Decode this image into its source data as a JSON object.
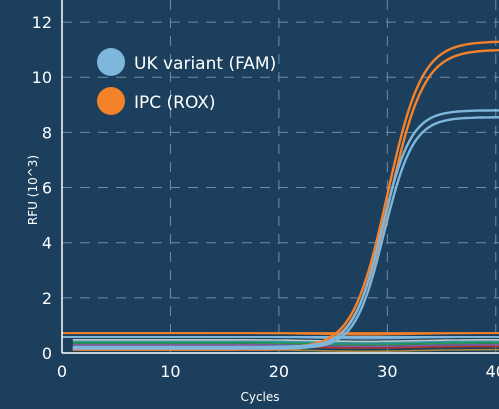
{
  "chart_data": {
    "type": "line",
    "title": "",
    "xlabel": "Cycles",
    "ylabel": "RFU (10^3)",
    "xlim": [
      0,
      45
    ],
    "ylim": [
      0,
      12.8
    ],
    "x_ticks": [
      0,
      10,
      20,
      30,
      40
    ],
    "y_ticks": [
      0,
      2,
      4,
      6,
      8,
      10,
      12
    ],
    "grid": true,
    "legend_position": "top-left",
    "legend": [
      {
        "label": "UK variant (FAM)",
        "color": "#7fb6dc"
      },
      {
        "label": "IPC (ROX)",
        "color": "#f5822a"
      }
    ],
    "series": [
      {
        "name": "IPC (ROX)",
        "color": "#f5822a",
        "kind": "curve",
        "baseline": 0.18,
        "plateau": 11.3,
        "midpoint": 30.0,
        "slope": 0.63
      },
      {
        "name": "IPC (ROX)",
        "color": "#f5822a",
        "kind": "curve",
        "baseline": 0.12,
        "plateau": 11.0,
        "midpoint": 30.2,
        "slope": 0.63
      },
      {
        "name": "UK variant (FAM)",
        "color": "#7fb6dc",
        "kind": "curve",
        "baseline": 0.22,
        "plateau": 8.8,
        "midpoint": 29.5,
        "slope": 0.75
      },
      {
        "name": "UK variant (FAM)",
        "color": "#7fb6dc",
        "kind": "curve",
        "baseline": 0.16,
        "plateau": 8.55,
        "midpoint": 29.7,
        "slope": 0.75
      },
      {
        "name": "",
        "color": "#f5822a",
        "kind": "flat",
        "y": 0.72
      },
      {
        "name": "",
        "color": "#7fb6dc",
        "kind": "flat",
        "y": 0.58
      },
      {
        "name": "",
        "color": "#2fa8a8",
        "kind": "flat",
        "y": 0.42
      },
      {
        "name": "",
        "color": "#8a5fb0",
        "kind": "flat",
        "y": 0.3
      },
      {
        "name": "",
        "color": "#c0392b",
        "kind": "flat",
        "y": 0.24
      },
      {
        "name": "",
        "color": "#2f9e4f",
        "kind": "flat",
        "y": 0.36
      },
      {
        "name": "",
        "color": "#b8913a",
        "kind": "flat",
        "y": 0.12
      },
      {
        "name": "",
        "color": "#d9d9d9",
        "kind": "flat",
        "y": 0.48
      }
    ]
  }
}
